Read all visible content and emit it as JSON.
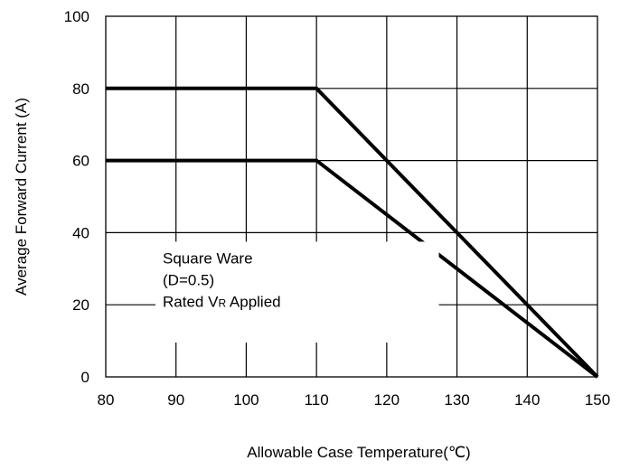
{
  "chart_data": {
    "type": "line",
    "title": "",
    "xlabel": "Allowable Case Temperature(℃)",
    "ylabel": "Average Forward Current (A)",
    "xlim": [
      80,
      150
    ],
    "ylim": [
      0,
      100
    ],
    "xticks": [
      80,
      90,
      100,
      110,
      120,
      130,
      140,
      150
    ],
    "yticks": [
      0,
      20,
      40,
      60,
      80,
      100
    ],
    "grid": true,
    "series": [
      {
        "x": [
          80,
          110,
          150
        ],
        "y": [
          80,
          80,
          0
        ]
      },
      {
        "x": [
          80,
          110,
          150
        ],
        "y": [
          60,
          60,
          0
        ]
      }
    ],
    "annotation": {
      "lines": [
        "Square Ware",
        "(D=0.5)"
      ],
      "rated_prefix": "Rated V",
      "rated_sub": "R",
      "rated_suffix": " Applied"
    }
  }
}
